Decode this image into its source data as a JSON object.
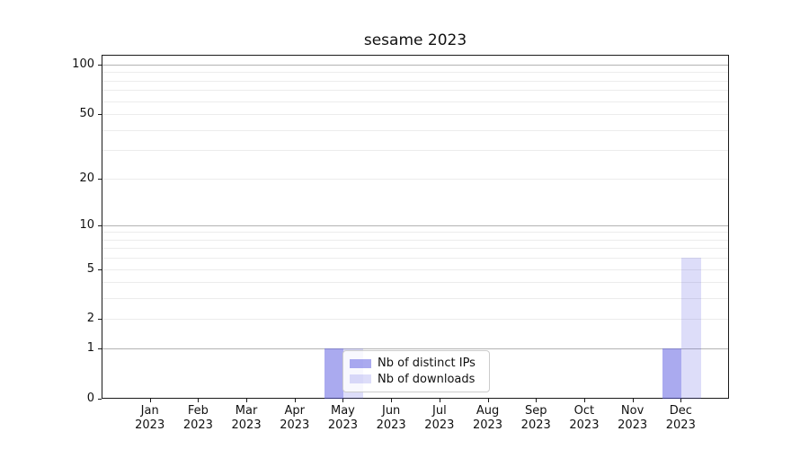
{
  "title": "sesame 2023",
  "colors": {
    "bar_series_ips": "rgba(85,85,224,0.5)",
    "bar_series_downloads": "rgba(85,85,224,0.2)",
    "grid_major": "#b3b3b3",
    "grid_minor": "#ececec",
    "spine": "#1a1a1a",
    "legend_border": "#cccccc"
  },
  "legend": {
    "items": [
      {
        "label": "Nb of distinct IPs",
        "color": "rgba(85,85,224,0.5)"
      },
      {
        "label": "Nb of downloads",
        "color": "rgba(85,85,224,0.2)"
      }
    ]
  },
  "y_axis": {
    "scale": "log1p",
    "max": 100,
    "tick_values": [
      0,
      1,
      2,
      5,
      10,
      20,
      50,
      100
    ],
    "tick_labels": [
      "0",
      "1",
      "2",
      "5",
      "10",
      "20",
      "50",
      "100"
    ],
    "major_grid_values": [
      1,
      10,
      100
    ],
    "minor_grid_values": [
      2,
      3,
      4,
      5,
      6,
      7,
      8,
      9,
      20,
      30,
      40,
      50,
      60,
      70,
      80,
      90
    ]
  },
  "x_axis": {
    "labels": [
      {
        "month": "Jan",
        "year": "2023"
      },
      {
        "month": "Feb",
        "year": "2023"
      },
      {
        "month": "Mar",
        "year": "2023"
      },
      {
        "month": "Apr",
        "year": "2023"
      },
      {
        "month": "May",
        "year": "2023"
      },
      {
        "month": "Jun",
        "year": "2023"
      },
      {
        "month": "Jul",
        "year": "2023"
      },
      {
        "month": "Aug",
        "year": "2023"
      },
      {
        "month": "Sep",
        "year": "2023"
      },
      {
        "month": "Oct",
        "year": "2023"
      },
      {
        "month": "Nov",
        "year": "2023"
      },
      {
        "month": "Dec",
        "year": "2023"
      }
    ]
  },
  "chart_data": {
    "type": "bar",
    "title": "sesame 2023",
    "categories": [
      "Jan 2023",
      "Feb 2023",
      "Mar 2023",
      "Apr 2023",
      "May 2023",
      "Jun 2023",
      "Jul 2023",
      "Aug 2023",
      "Sep 2023",
      "Oct 2023",
      "Nov 2023",
      "Dec 2023"
    ],
    "series": [
      {
        "name": "Nb of distinct IPs",
        "color": "rgba(85,85,224,0.5)",
        "values": [
          0,
          0,
          0,
          0,
          1,
          0,
          0,
          0,
          0,
          0,
          0,
          1
        ]
      },
      {
        "name": "Nb of downloads",
        "color": "rgba(85,85,224,0.2)",
        "values": [
          0,
          0,
          0,
          0,
          1,
          0,
          0,
          0,
          0,
          0,
          0,
          6
        ]
      }
    ],
    "xlabel": "",
    "ylabel": "",
    "yscale": "log1p",
    "ylim": [
      0,
      110
    ],
    "yticks": [
      0,
      1,
      2,
      5,
      10,
      20,
      50,
      100
    ],
    "grid": true,
    "legend_position": "inside-bottom-center"
  }
}
